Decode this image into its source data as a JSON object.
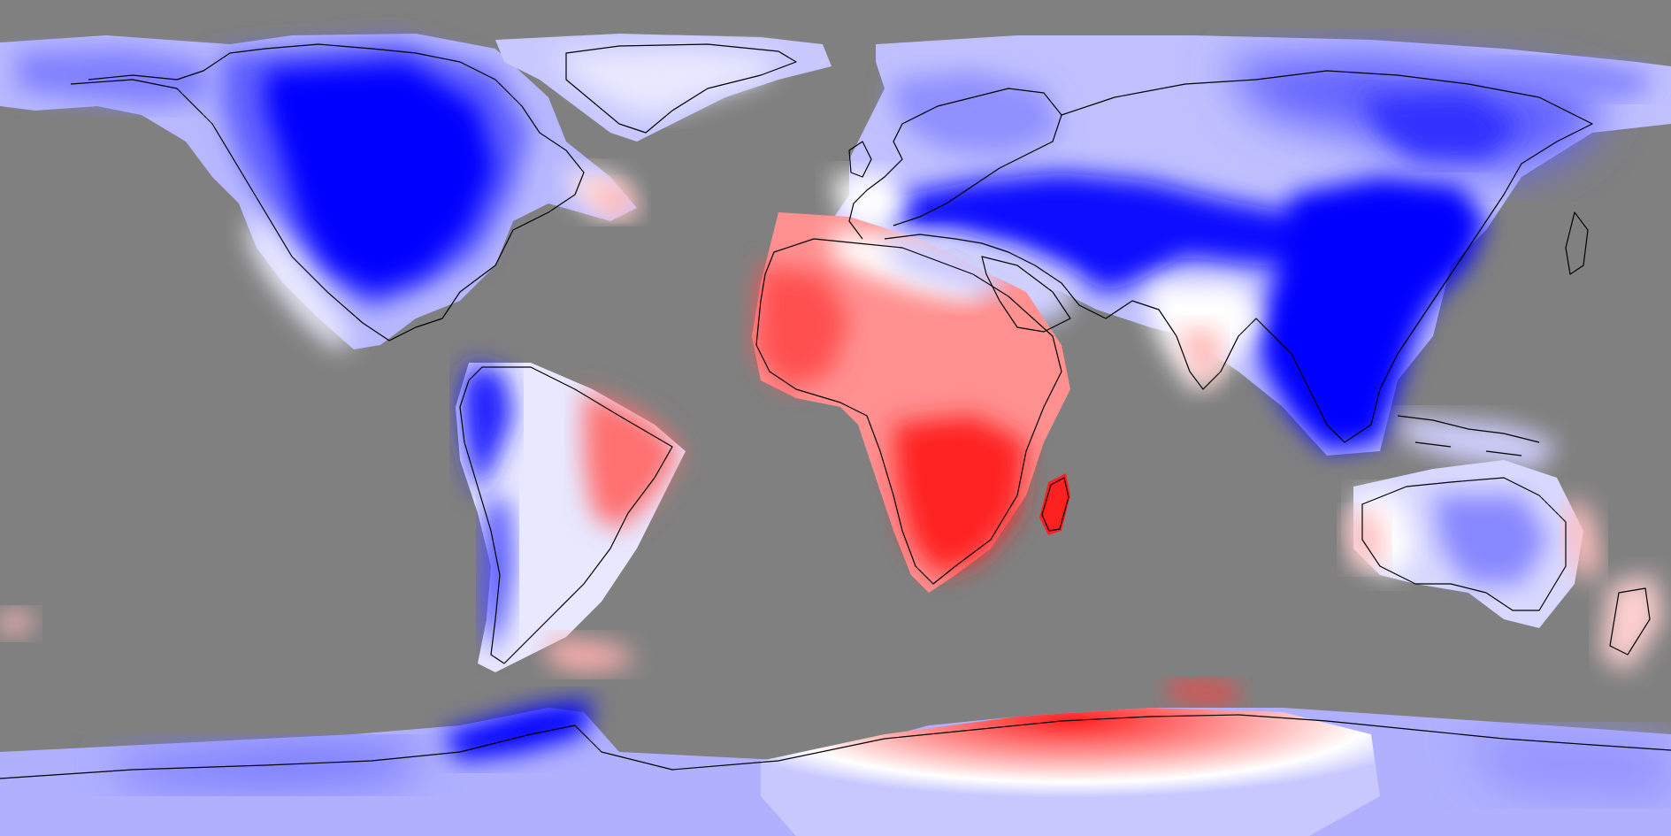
{
  "map": {
    "projection": "equirectangular",
    "background_color": "#808080",
    "color_scale": {
      "negative_color": "#0000ff",
      "neutral_color": "#ffffff",
      "positive_color": "#ff0000"
    },
    "coastline_color": "#000000",
    "regions": [
      {
        "name": "north-america",
        "anomaly": "negative"
      },
      {
        "name": "greenland",
        "anomaly": "weak-negative"
      },
      {
        "name": "europe-north-asia",
        "anomaly": "negative"
      },
      {
        "name": "south-asia",
        "anomaly": "strong-negative"
      },
      {
        "name": "west-africa",
        "anomaly": "positive"
      },
      {
        "name": "southern-africa",
        "anomaly": "strong-positive"
      },
      {
        "name": "south-america-west",
        "anomaly": "negative"
      },
      {
        "name": "south-america-east",
        "anomaly": "positive"
      },
      {
        "name": "australia",
        "anomaly": "weak-negative"
      },
      {
        "name": "antarctica-east",
        "anomaly": "positive"
      },
      {
        "name": "antarctica-west",
        "anomaly": "negative"
      }
    ]
  }
}
